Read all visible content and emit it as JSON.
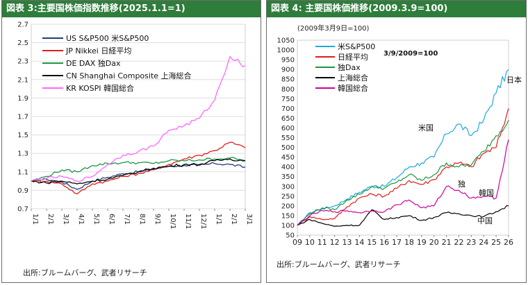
{
  "chart_data": [
    {
      "type": "line",
      "title": "図表 3:主要国株価指数推移(2025.1.1=1)",
      "source": "出所:ブルームバーグ、武者リサーチ",
      "x": [
        "1/1",
        "2/1",
        "3/1",
        "4/1",
        "5/1",
        "6/1",
        "7/1",
        "8/1",
        "9/1",
        "10/1",
        "11/1",
        "12/1",
        "1/1",
        "2/1",
        "3/1"
      ],
      "ylim": [
        0.7,
        2.7
      ],
      "yticks": [
        "0.7",
        "0.9",
        "1.1",
        "1.3",
        "1.5",
        "1.7",
        "1.9",
        "2.1",
        "2.3",
        "2.5",
        "2.7"
      ],
      "grid": true,
      "legend": "top-left",
      "series": [
        {
          "name": "US S&P500 米S&P500",
          "color": "#1f3d7a",
          "values": [
            1.0,
            1.02,
            0.99,
            0.91,
            1.0,
            1.04,
            1.08,
            1.1,
            1.13,
            1.16,
            1.17,
            1.17,
            1.19,
            1.18,
            1.15
          ]
        },
        {
          "name": "JP Nikkei 日経平均",
          "color": "#e31a1c",
          "values": [
            1.0,
            1.0,
            0.97,
            0.86,
            0.97,
            1.0,
            1.05,
            1.08,
            1.12,
            1.18,
            1.24,
            1.28,
            1.33,
            1.42,
            1.36
          ]
        },
        {
          "name": "DE DAX 独Dax",
          "color": "#1a9641",
          "values": [
            1.0,
            1.05,
            1.12,
            1.1,
            1.17,
            1.19,
            1.2,
            1.2,
            1.19,
            1.22,
            1.22,
            1.23,
            1.24,
            1.25,
            1.22
          ]
        },
        {
          "name": "CN Shanghai Composite 上海総合",
          "color": "#000000",
          "values": [
            1.0,
            0.98,
            1.0,
            0.97,
            1.0,
            1.02,
            1.06,
            1.1,
            1.14,
            1.16,
            1.18,
            1.18,
            1.22,
            1.24,
            1.22
          ]
        },
        {
          "name": "KR KOSPI 韓国総合",
          "color": "#ff66ff",
          "values": [
            1.0,
            1.03,
            1.05,
            1.0,
            1.05,
            1.18,
            1.28,
            1.32,
            1.38,
            1.55,
            1.6,
            1.68,
            1.88,
            2.35,
            2.25
          ]
        }
      ]
    },
    {
      "type": "line",
      "title": "図表 4: 主要国株価推移(2009.3.9=100)",
      "subtitle": "(2009年3月9日=100)",
      "source": "出所:ブルームバーグ、武者リサーチ",
      "x": [
        "09",
        "10",
        "11",
        "12",
        "13",
        "14",
        "15",
        "16",
        "17",
        "18",
        "19",
        "20",
        "21",
        "22",
        "23",
        "24",
        "25",
        "26"
      ],
      "ylim": [
        50,
        1050
      ],
      "yticks": [
        "50",
        "100",
        "150",
        "200",
        "250",
        "300",
        "350",
        "400",
        "450",
        "500",
        "550",
        "600",
        "650",
        "700",
        "750",
        "800",
        "850",
        "900",
        "950",
        "1000",
        "1050"
      ],
      "grid": false,
      "legend": "top-left",
      "legend_note": "3/9/2009=100",
      "annotations": [
        "日本",
        "米国",
        "独",
        "韓国",
        "中国"
      ],
      "series": [
        {
          "name": "米S&P500",
          "color": "#1ea7e1",
          "values": [
            100,
            165,
            185,
            200,
            235,
            270,
            300,
            300,
            345,
            400,
            420,
            450,
            570,
            620,
            560,
            640,
            780,
            900
          ]
        },
        {
          "name": "日経平均",
          "color": "#e31a1c",
          "values": [
            100,
            145,
            130,
            135,
            195,
            240,
            260,
            250,
            290,
            330,
            310,
            335,
            400,
            420,
            400,
            470,
            500,
            700
          ]
        },
        {
          "name": "独Dax",
          "color": "#1a9641",
          "values": [
            100,
            160,
            190,
            180,
            230,
            260,
            300,
            290,
            320,
            360,
            330,
            360,
            420,
            400,
            410,
            480,
            560,
            640
          ]
        },
        {
          "name": "上海総合",
          "color": "#000000",
          "values": [
            100,
            130,
            110,
            95,
            100,
            100,
            180,
            130,
            140,
            150,
            125,
            140,
            165,
            160,
            150,
            145,
            170,
            200
          ]
        },
        {
          "name": "韓国総合",
          "color": "#cc0099",
          "values": [
            100,
            150,
            175,
            170,
            175,
            165,
            175,
            170,
            205,
            230,
            190,
            200,
            300,
            280,
            240,
            250,
            240,
            540
          ]
        }
      ]
    }
  ]
}
